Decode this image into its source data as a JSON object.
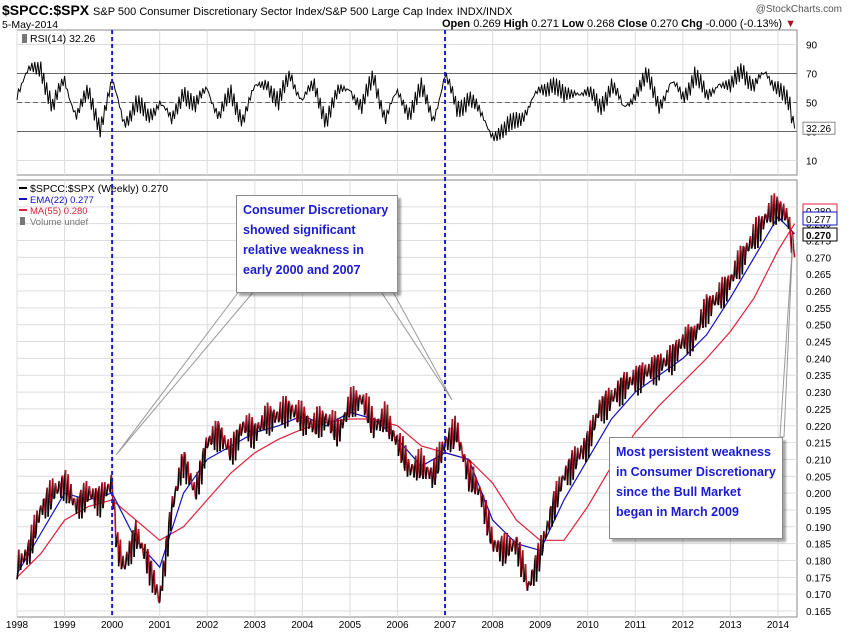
{
  "header": {
    "symbol": "$SPCC:$SPX",
    "description": "S&P 500 Consumer Discretionary Sector Index/S&P 500 Large Cap Index",
    "exchange": "INDX/INDX",
    "date": "5-May-2014",
    "open_label": "Open",
    "open": "0.269",
    "high_label": "High",
    "high": "0.271",
    "low_label": "Low",
    "low": "0.268",
    "close_label": "Close",
    "close": "0.270",
    "chg_label": "Chg",
    "chg": "-0.000 (-0.13%)",
    "watermark": "@StockCharts.com"
  },
  "colors": {
    "price": "#000000",
    "price_down": "#b01020",
    "ema": "#1010c0",
    "ma": "#e0203a",
    "rsi": "#000000",
    "annot": "#1b1bd6",
    "grid": "#dddddd",
    "rsi_over": "#4a7a4a",
    "rsi_under": "#8a4a4a"
  },
  "annotations": {
    "top": "Consumer Discretionary showed significant relative weakness in early 2000 and 2007",
    "bottom": "Most persistent weakness in Consumer Discretionary since the Bull Market began in March 2009"
  },
  "chart_data": [
    {
      "type": "line",
      "title": "RSI(14) 32.26",
      "legend": [
        "RSI(14) 32.26"
      ],
      "ylim": [
        0,
        100
      ],
      "yticks": [
        10,
        30,
        50,
        70,
        90
      ],
      "reference_lines": [
        30,
        50,
        70
      ],
      "last_value": "32.26",
      "x": [
        1998.0,
        1998.25,
        1998.5,
        1998.75,
        1999.0,
        1999.25,
        1999.5,
        1999.75,
        2000.0,
        2000.25,
        2000.5,
        2000.75,
        2001.0,
        2001.25,
        2001.5,
        2001.75,
        2002.0,
        2002.25,
        2002.5,
        2002.75,
        2003.0,
        2003.25,
        2003.5,
        2003.75,
        2004.0,
        2004.25,
        2004.5,
        2004.75,
        2005.0,
        2005.25,
        2005.5,
        2005.75,
        2006.0,
        2006.25,
        2006.5,
        2006.75,
        2007.0,
        2007.25,
        2007.5,
        2007.75,
        2008.0,
        2008.25,
        2008.5,
        2008.75,
        2009.0,
        2009.25,
        2009.5,
        2009.75,
        2010.0,
        2010.25,
        2010.5,
        2010.75,
        2011.0,
        2011.25,
        2011.5,
        2011.75,
        2012.0,
        2012.25,
        2012.5,
        2012.75,
        2013.0,
        2013.25,
        2013.5,
        2013.75,
        2014.0,
        2014.25,
        2014.35
      ],
      "values": [
        58,
        70,
        76,
        45,
        66,
        42,
        55,
        35,
        62,
        38,
        48,
        40,
        52,
        35,
        60,
        45,
        62,
        40,
        55,
        40,
        58,
        66,
        48,
        70,
        52,
        60,
        40,
        55,
        62,
        45,
        68,
        40,
        55,
        45,
        58,
        40,
        68,
        45,
        55,
        40,
        30,
        28,
        40,
        45,
        58,
        65,
        52,
        60,
        55,
        48,
        62,
        45,
        58,
        66,
        50,
        62,
        54,
        70,
        52,
        66,
        58,
        75,
        60,
        70,
        62,
        45,
        32
      ]
    },
    {
      "type": "line",
      "title": "$SPCC:$SPX (Weekly) 0.270",
      "legend": [
        "$SPCC:$SPX (Weekly) 0.270",
        "EMA(22) 0.277",
        "MA(55) 0.280",
        "Volume undef"
      ],
      "ylim": [
        0.165,
        0.29
      ],
      "yticks": [
        0.165,
        0.17,
        0.175,
        0.18,
        0.185,
        0.19,
        0.195,
        0.2,
        0.205,
        0.21,
        0.215,
        0.22,
        0.225,
        0.23,
        0.235,
        0.24,
        0.245,
        0.25,
        0.255,
        0.26,
        0.265,
        0.27,
        0.275,
        0.28,
        0.285
      ],
      "xticks": [
        "1998",
        "1999",
        "2000",
        "2001",
        "2002",
        "2003",
        "2004",
        "2005",
        "2006",
        "2007",
        "2008",
        "2009",
        "2010",
        "2011",
        "2012",
        "2013",
        "2014"
      ],
      "value_labels": [
        "0.280",
        "0.277",
        "0.270"
      ],
      "series": [
        {
          "name": "$SPCC:$SPX (Weekly)",
          "x": [
            1998.0,
            1998.25,
            1998.5,
            1998.75,
            1999.0,
            1999.25,
            1999.5,
            1999.75,
            2000.0,
            2000.1,
            2000.25,
            2000.5,
            2000.75,
            2001.0,
            2001.25,
            2001.5,
            2001.75,
            2002.0,
            2002.25,
            2002.5,
            2002.75,
            2003.0,
            2003.25,
            2003.5,
            2003.75,
            2004.0,
            2004.25,
            2004.5,
            2004.75,
            2005.0,
            2005.25,
            2005.5,
            2005.75,
            2006.0,
            2006.25,
            2006.5,
            2006.75,
            2007.0,
            2007.25,
            2007.5,
            2007.75,
            2008.0,
            2008.25,
            2008.5,
            2008.75,
            2009.0,
            2009.25,
            2009.5,
            2009.75,
            2010.0,
            2010.25,
            2010.5,
            2010.75,
            2011.0,
            2011.25,
            2011.5,
            2011.75,
            2012.0,
            2012.25,
            2012.5,
            2012.75,
            2013.0,
            2013.25,
            2013.5,
            2013.75,
            2014.0,
            2014.2,
            2014.35
          ],
          "values": [
            0.178,
            0.183,
            0.195,
            0.2,
            0.203,
            0.196,
            0.2,
            0.198,
            0.203,
            0.185,
            0.178,
            0.188,
            0.18,
            0.168,
            0.195,
            0.21,
            0.2,
            0.215,
            0.218,
            0.212,
            0.22,
            0.218,
            0.222,
            0.223,
            0.225,
            0.222,
            0.22,
            0.222,
            0.218,
            0.226,
            0.228,
            0.22,
            0.222,
            0.215,
            0.207,
            0.208,
            0.205,
            0.215,
            0.218,
            0.205,
            0.2,
            0.185,
            0.183,
            0.185,
            0.172,
            0.182,
            0.195,
            0.205,
            0.21,
            0.215,
            0.225,
            0.228,
            0.232,
            0.234,
            0.236,
            0.238,
            0.24,
            0.245,
            0.247,
            0.255,
            0.258,
            0.263,
            0.27,
            0.276,
            0.282,
            0.285,
            0.282,
            0.27
          ]
        },
        {
          "name": "EMA(22)",
          "x": [
            1998.0,
            1998.5,
            1999.0,
            1999.5,
            2000.0,
            2000.5,
            2001.0,
            2001.5,
            2002.0,
            2002.5,
            2003.0,
            2003.5,
            2004.0,
            2004.5,
            2005.0,
            2005.5,
            2006.0,
            2006.5,
            2007.0,
            2007.5,
            2008.0,
            2008.5,
            2009.0,
            2009.5,
            2010.0,
            2010.5,
            2011.0,
            2011.5,
            2012.0,
            2012.5,
            2013.0,
            2013.5,
            2014.0,
            2014.35
          ],
          "values": [
            0.176,
            0.188,
            0.2,
            0.198,
            0.2,
            0.186,
            0.178,
            0.2,
            0.21,
            0.214,
            0.218,
            0.22,
            0.223,
            0.22,
            0.224,
            0.222,
            0.216,
            0.208,
            0.212,
            0.21,
            0.192,
            0.185,
            0.183,
            0.198,
            0.21,
            0.222,
            0.23,
            0.235,
            0.24,
            0.247,
            0.258,
            0.27,
            0.282,
            0.277
          ]
        },
        {
          "name": "MA(55)",
          "x": [
            1998.0,
            1998.5,
            1999.0,
            1999.5,
            2000.0,
            2000.5,
            2001.0,
            2001.5,
            2002.0,
            2002.5,
            2003.0,
            2003.5,
            2004.0,
            2004.5,
            2005.0,
            2005.5,
            2006.0,
            2006.5,
            2007.0,
            2007.5,
            2008.0,
            2008.5,
            2009.0,
            2009.5,
            2010.0,
            2010.5,
            2011.0,
            2011.5,
            2012.0,
            2012.5,
            2013.0,
            2013.5,
            2014.0,
            2014.35
          ],
          "values": [
            0.175,
            0.182,
            0.192,
            0.196,
            0.198,
            0.192,
            0.186,
            0.19,
            0.198,
            0.206,
            0.212,
            0.216,
            0.219,
            0.221,
            0.222,
            0.222,
            0.22,
            0.214,
            0.212,
            0.21,
            0.203,
            0.192,
            0.186,
            0.186,
            0.196,
            0.208,
            0.218,
            0.226,
            0.233,
            0.24,
            0.248,
            0.258,
            0.272,
            0.28
          ]
        }
      ],
      "vertical_markers": [
        2000.0,
        2007.0
      ]
    }
  ]
}
